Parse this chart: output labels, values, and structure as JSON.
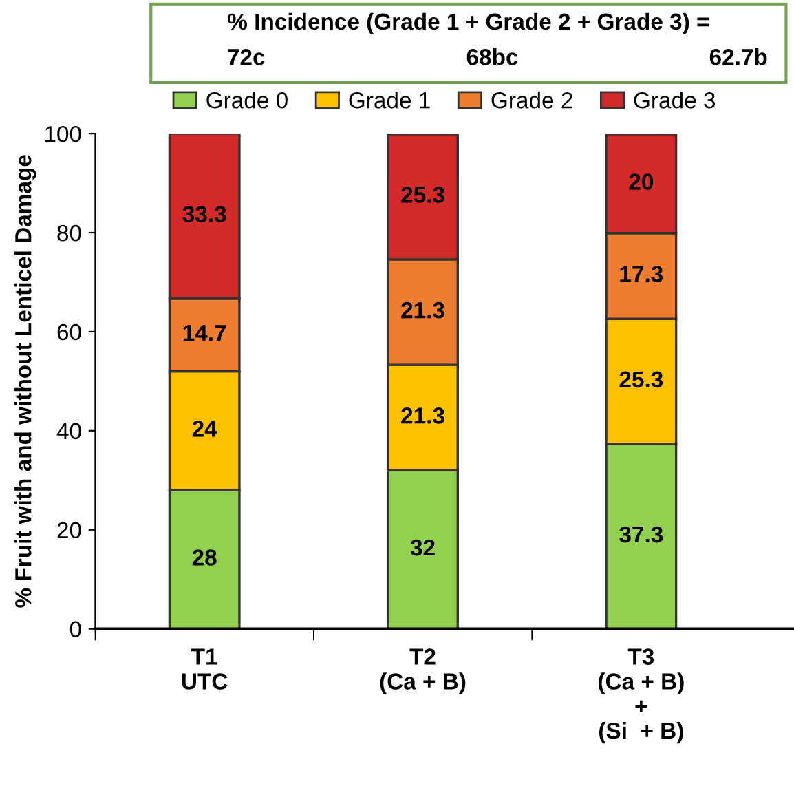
{
  "chart_data": {
    "type": "bar",
    "stacked": true,
    "ylabel": "% Fruit with and without Lenticel Damage",
    "categories": [
      "T1\nUTC",
      "T2\n(Ca + B)",
      "T3\n(Ca + B)\n+\n(Si  + B)"
    ],
    "series": [
      {
        "name": "Grade 0",
        "color": "#92d050",
        "values": [
          28,
          32,
          37.3
        ]
      },
      {
        "name": "Grade 1",
        "color": "#ffc000",
        "values": [
          24,
          21.3,
          25.3
        ]
      },
      {
        "name": "Grade 2",
        "color": "#ed7d31",
        "values": [
          14.7,
          21.3,
          17.3
        ]
      },
      {
        "name": "Grade 3",
        "color": "#d42a2a",
        "values": [
          33.3,
          25.3,
          20
        ]
      }
    ],
    "ylim": [
      0,
      100
    ],
    "yticks": [
      0,
      20,
      40,
      60,
      80,
      100
    ],
    "grid": false,
    "legend": "top",
    "data_labels": true,
    "annotations": [
      "% Incidence (Grade 1 + Grade 2 + Grade 3) =",
      "72c",
      "68bc",
      "62.7b"
    ]
  }
}
